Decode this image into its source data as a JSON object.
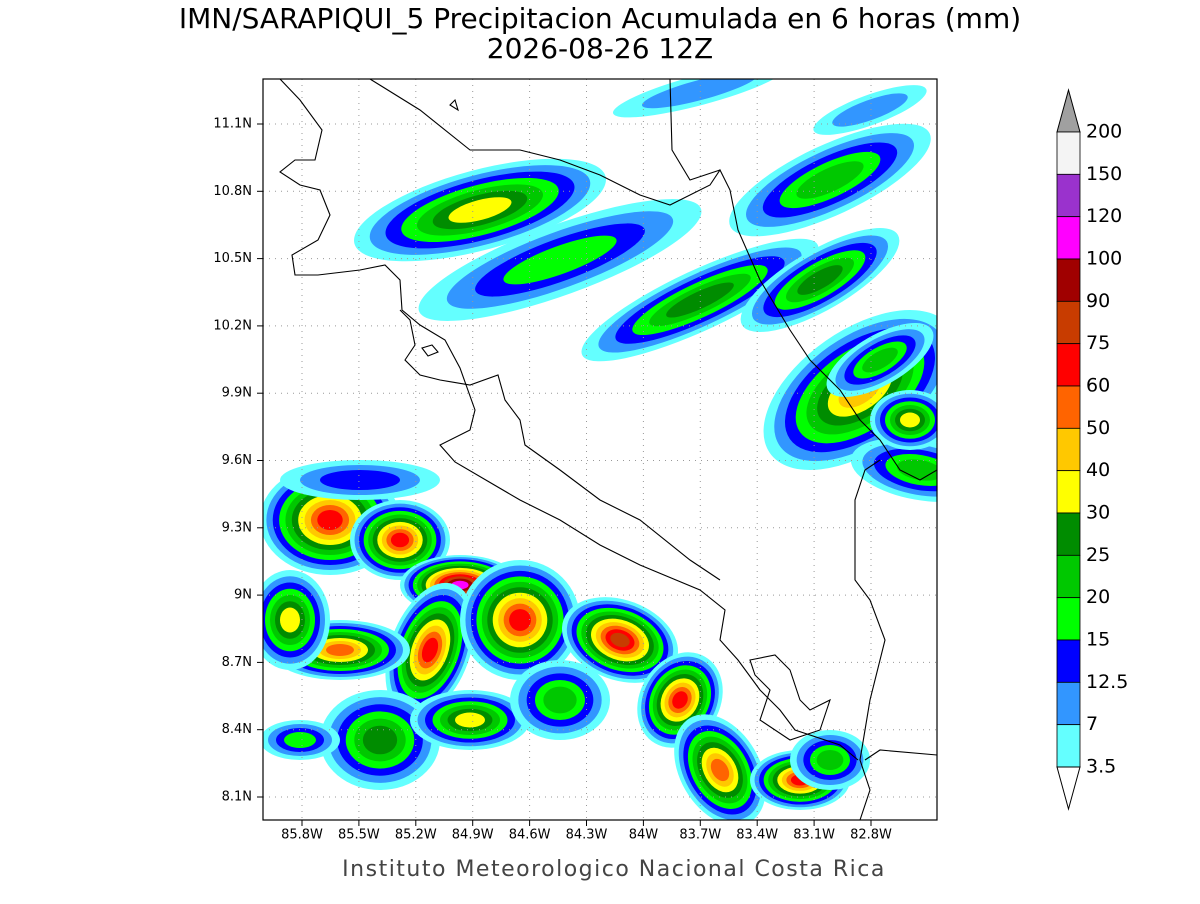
{
  "title": {
    "line1": "IMN/SARAPIQUI_5 Precipitacion Acumulada en 6 horas (mm)",
    "line2": "2026-08-26 12Z"
  },
  "lat_ticks": [
    "11.1N",
    "10.8N",
    "10.5N",
    "10.2N",
    "9.9N",
    "9.6N",
    "9.3N",
    "9N",
    "8.7N",
    "8.4N",
    "8.1N"
  ],
  "lon_ticks": [
    "85.8W",
    "85.5W",
    "85.2W",
    "84.9W",
    "84.6W",
    "84.3W",
    "84W",
    "83.7W",
    "83.4W",
    "83.1W",
    "82.8W"
  ],
  "colorbar": {
    "levels": [
      200,
      150,
      120,
      100,
      90,
      75,
      60,
      50,
      40,
      30,
      25,
      20,
      15,
      12.5,
      7,
      3.5
    ],
    "colors": [
      "#f4f4f4",
      "#9a32cd",
      "#ff00ff",
      "#a00000",
      "#c83c00",
      "#ff0000",
      "#ff6400",
      "#ffc800",
      "#ffff00",
      "#008c00",
      "#00c800",
      "#00ff00",
      "#0000ff",
      "#3296ff",
      "#64ffff"
    ],
    "above_color": "#a0a0a0",
    "below_color": "#ffffff"
  },
  "footer": "Instituto Meteorologico Nacional Costa Rica"
}
